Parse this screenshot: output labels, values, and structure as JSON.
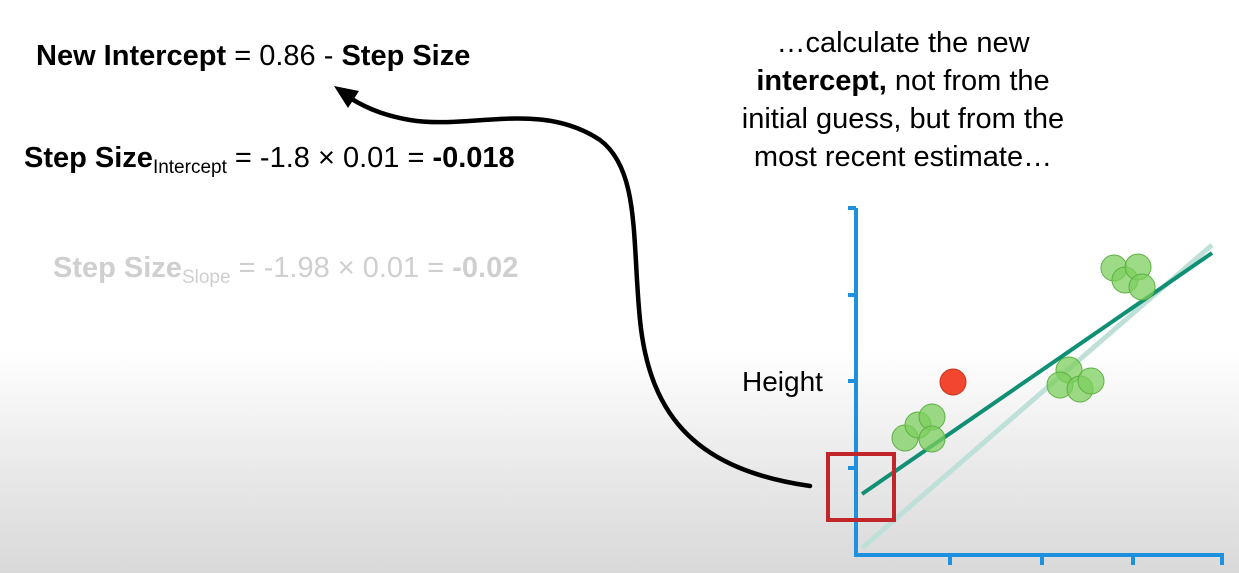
{
  "equations": {
    "new_intercept": {
      "label": "New Intercept",
      "rest": " = 0.86 - ",
      "step_label": "Step Size"
    },
    "step_intercept": {
      "label": "Step Size",
      "subscript": "Intercept",
      "rest": " = -1.8 × 0.01 = ",
      "result": "-0.018"
    },
    "step_slope": {
      "label": "Step Size",
      "subscript": "Slope",
      "rest": " = -1.98 × 0.01 = ",
      "result": "-0.02"
    }
  },
  "caption": {
    "line1": "…calculate the new",
    "line2_bold": "intercept,",
    "line2_rest": " not from the",
    "line3": "initial guess, but from the",
    "line4": "most recent estimate…"
  },
  "plot": {
    "y_axis_label": "Height",
    "axis_color": "#1e90e0",
    "fit_line_color": "#0f8f73",
    "prev_line_color": "#bfe0d8",
    "point_color": "#7ccf5e",
    "highlight_point_color": "#f2472e",
    "box_color": "#c0262a",
    "arrow_color": "#000000"
  }
}
